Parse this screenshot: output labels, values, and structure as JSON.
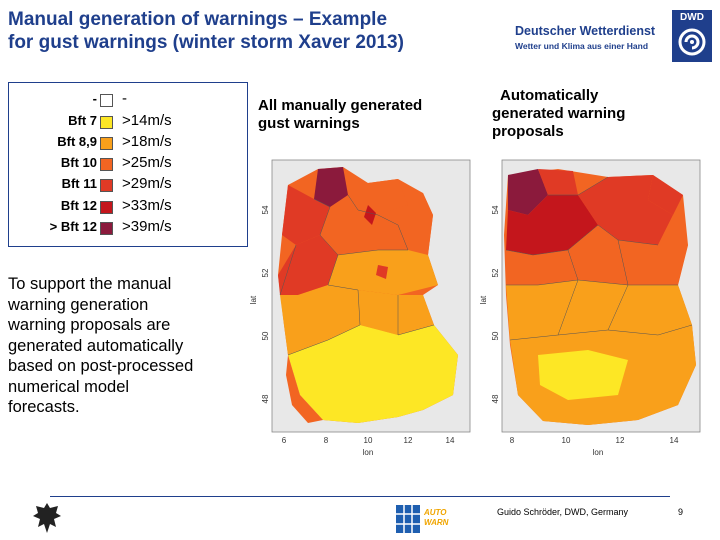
{
  "slide": {
    "title_line1": "Manual generation of warnings – Example",
    "title_line2": "for gust warnings (winter storm Xaver 2013)",
    "org_name": "Deutscher Wetterdienst",
    "org_tagline": "Wetter und Klima aus einer Hand",
    "org_abbr": "DWD",
    "footer_author": "Guido Schröder, DWD, Germany",
    "page_number": "9",
    "autowarn_logo_text": "AUTO WARN"
  },
  "legend": {
    "rows": [
      {
        "bft": "-",
        "ms": "-",
        "color": "#ffffff"
      },
      {
        "bft": "Bft 7",
        "ms": ">14m/s",
        "color": "#fde725"
      },
      {
        "bft": "Bft 8,9",
        "ms": ">18m/s",
        "color": "#f9a01b"
      },
      {
        "bft": "Bft 10",
        "ms": ">25m/s",
        "color": "#f26522"
      },
      {
        "bft": "Bft 11",
        "ms": ">29m/s",
        "color": "#e03a25"
      },
      {
        "bft": "Bft 12",
        "ms": ">33m/s",
        "color": "#c4161c"
      },
      {
        "bft": "> Bft 12",
        "ms": ">39m/s",
        "color": "#8b1a3c"
      }
    ]
  },
  "panels": {
    "manual_heading_line1": "All manually generated",
    "manual_heading_line2": "gust warnings",
    "auto_heading_line1": "Automatically",
    "auto_heading_line2": "generated warning",
    "auto_heading_line3": "proposals"
  },
  "description": {
    "line1": "To support the manual",
    "line2": "warning generation",
    "line3": "warning proposals are",
    "line4": "generated automatically",
    "line5": "based on post-processed",
    "line6": "numerical model",
    "line7": "forecasts."
  },
  "maps": {
    "y_axis_label": "lat",
    "x_axis_label": "lon",
    "y_ticks": [
      "54",
      "52",
      "50",
      "48"
    ],
    "manual_x_ticks": [
      "6",
      "8",
      "10",
      "12",
      "14"
    ],
    "auto_x_ticks": [
      "8",
      "10",
      "12",
      "14"
    ]
  },
  "colors": {
    "title": "#1f3f8c",
    "map_background": "#e8e8e8"
  }
}
